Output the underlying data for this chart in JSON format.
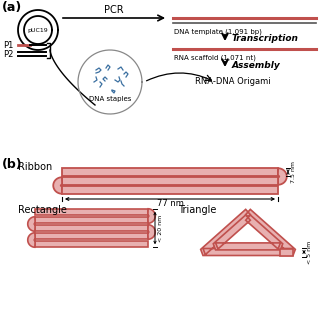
{
  "bg_color": "#ffffff",
  "rna_color": "#c0504d",
  "dna_color": "#000000",
  "blue_color": "#3a6fa0",
  "rib_color": "#c0504d",
  "rib_fill": "#e8b0b0",
  "label_a": "(a)",
  "label_b": "(b)",
  "pcr_label": "PCR",
  "puc19_label": "pUC19",
  "p1_label": "P1",
  "p2_label": "P2",
  "dna_staples_label": "DNA staples",
  "dna_template_label": "DNA template (1,091 bp)",
  "transcription_label": "Transcription",
  "rna_scaffold_label": "RNA scaffold (1,071 nt)",
  "assembly_label": "Assembly",
  "rna_dna_label": "RNA-DNA Origami",
  "ribbon_label": "Ribbon",
  "rectangle_label": "Rectangle",
  "triangle_label": "Triangle",
  "width_77": "77 nm",
  "height_75": "7.5 nm",
  "width_20": "< 20 nm",
  "width_5": "< 5 nm"
}
